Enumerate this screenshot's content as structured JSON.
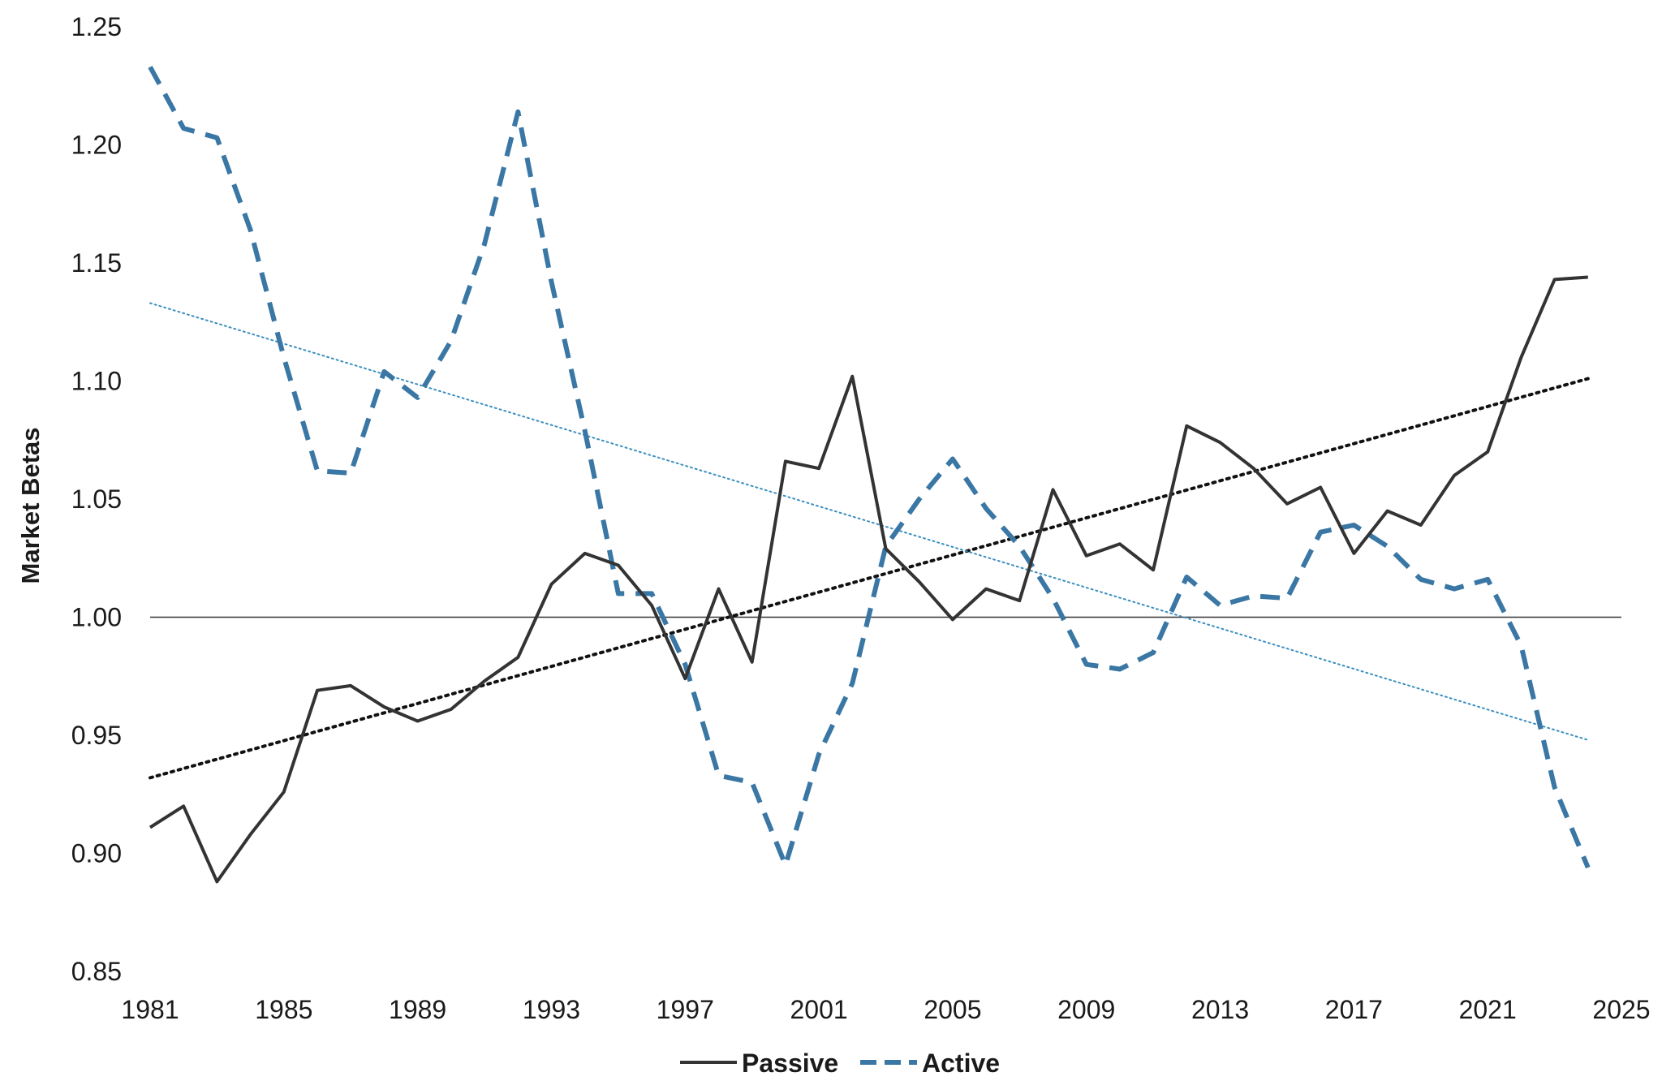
{
  "chart_data": {
    "type": "line",
    "title": "",
    "xlabel": "",
    "ylabel": "Market Betas",
    "xlim": [
      1981,
      2025
    ],
    "ylim": [
      0.85,
      1.25
    ],
    "x_ticks": [
      "1981",
      "1985",
      "1989",
      "1993",
      "1997",
      "2001",
      "2005",
      "2009",
      "2013",
      "2017",
      "2021",
      "2025"
    ],
    "y_ticks": [
      "1.25",
      "1.20",
      "1.15",
      "1.10",
      "1.05",
      "1.00",
      "0.95",
      "0.90",
      "0.85"
    ],
    "reference_line": 1.0,
    "grid": false,
    "legend_position": "bottom-center",
    "x": [
      1981,
      1982,
      1983,
      1984,
      1985,
      1986,
      1987,
      1988,
      1989,
      1990,
      1991,
      1992,
      1993,
      1994,
      1995,
      1996,
      1997,
      1998,
      1999,
      2000,
      2001,
      2002,
      2003,
      2004,
      2005,
      2006,
      2007,
      2008,
      2009,
      2010,
      2011,
      2012,
      2013,
      2014,
      2015,
      2016,
      2017,
      2018,
      2019,
      2020,
      2021,
      2022,
      2023,
      2024
    ],
    "series": [
      {
        "name": "Passive",
        "color": "#333333",
        "style": "solid",
        "values": [
          0.911,
          0.92,
          0.888,
          0.908,
          0.926,
          0.969,
          0.971,
          0.962,
          0.956,
          0.961,
          0.973,
          0.983,
          1.014,
          1.027,
          1.022,
          1.005,
          0.974,
          1.012,
          0.981,
          1.066,
          1.063,
          1.102,
          1.029,
          1.015,
          0.999,
          1.012,
          1.007,
          1.054,
          1.026,
          1.031,
          1.02,
          1.081,
          1.074,
          1.063,
          1.048,
          1.055,
          1.027,
          1.045,
          1.039,
          1.06,
          1.07,
          1.11,
          1.143,
          1.144
        ]
      },
      {
        "name": "Active",
        "color": "#3a77a5",
        "style": "dashed",
        "values": [
          1.233,
          1.207,
          1.203,
          1.164,
          1.11,
          1.062,
          1.061,
          1.104,
          1.093,
          1.117,
          1.158,
          1.214,
          1.142,
          1.079,
          1.01,
          1.01,
          0.98,
          0.933,
          0.93,
          0.895,
          0.942,
          0.972,
          1.03,
          1.05,
          1.067,
          1.046,
          1.03,
          1.008,
          0.98,
          0.978,
          0.985,
          1.017,
          1.005,
          1.009,
          1.008,
          1.036,
          1.039,
          1.03,
          1.016,
          1.012,
          1.016,
          0.988,
          0.928,
          0.894
        ]
      }
    ],
    "trendlines": [
      {
        "of": "Passive",
        "color": "#111111",
        "style": "dotted",
        "x": [
          1981,
          2024
        ],
        "y": [
          0.932,
          1.101
        ]
      },
      {
        "of": "Active",
        "color": "#3a8fc0",
        "style": "dotted",
        "x": [
          1981,
          2024
        ],
        "y": [
          1.133,
          0.948
        ]
      }
    ]
  }
}
